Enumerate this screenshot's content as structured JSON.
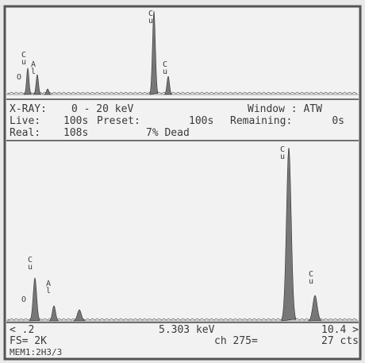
{
  "top_spectrum": {
    "peak_labels": [
      "O",
      "Cu",
      "Al",
      "Cu",
      "Cu"
    ]
  },
  "status": {
    "line1": {
      "label": "X-RAY:",
      "range": "0 - 20 keV",
      "window": "Window : ATW"
    },
    "line2": {
      "live": "Live:",
      "live_value": "100s",
      "preset": "Preset:",
      "preset_value": "100s",
      "remaining": "Remaining:",
      "remaining_value": "0s"
    },
    "line3": {
      "real": "Real:",
      "real_value": "108s",
      "dead": "7% Dead"
    }
  },
  "bottom_spectrum": {
    "peak_labels": [
      "O",
      "Cu",
      "Al",
      "Cu",
      "Cu"
    ]
  },
  "footer": {
    "left_limit": "< .2",
    "cursor_energy": "5.303 keV",
    "right_limit": "10.4 >",
    "full_scale": "FS= 2K",
    "channel": "ch 275=",
    "counts": "27 cts",
    "memory": "MEM1:2H3/3"
  }
}
